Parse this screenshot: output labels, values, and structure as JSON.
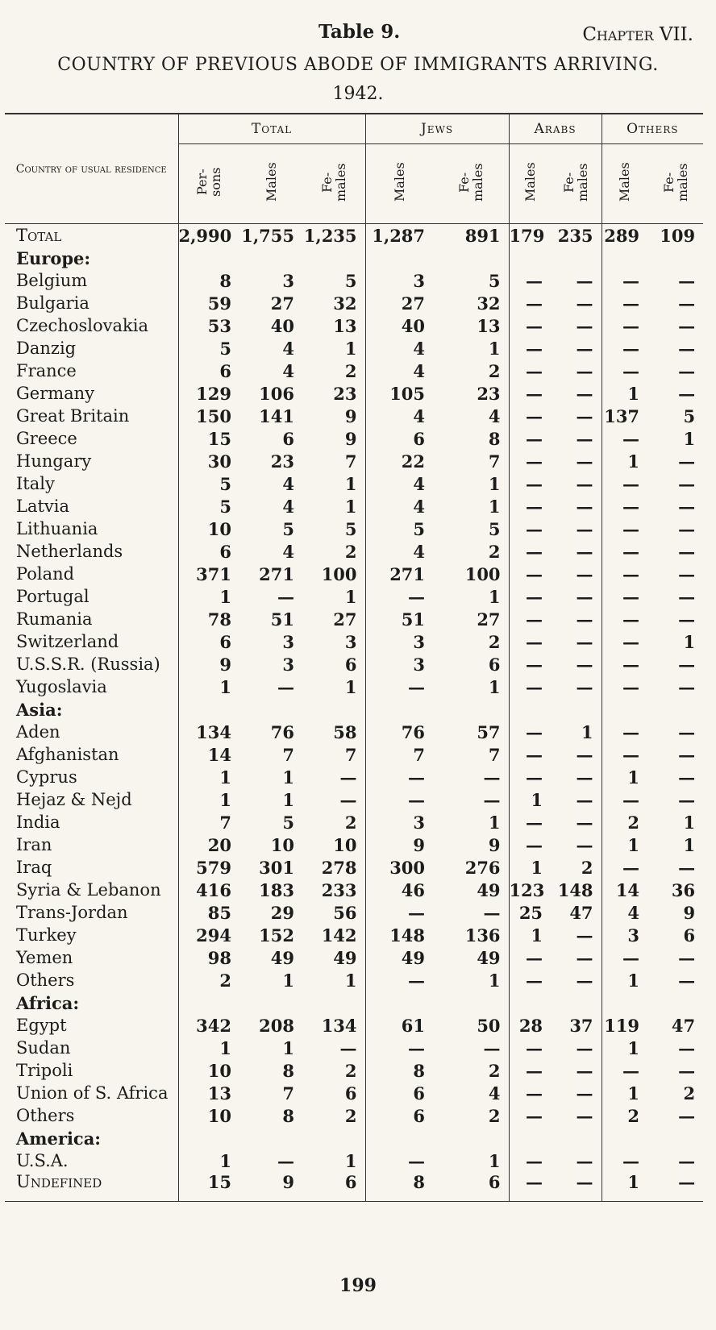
{
  "header": {
    "table_no": "Table 9.",
    "chapter": "Chapter VII.",
    "title": "COUNTRY OF PREVIOUS ABODE OF IMMIGRANTS ARRIVING.",
    "year": "1942."
  },
  "table": {
    "corner": "Country of usual residence",
    "groups": [
      "Total",
      "Jews",
      "Arabs",
      "Others"
    ],
    "columns": [
      "Per- sons",
      "Males",
      "Fe- males",
      "Males",
      "Fe- males",
      "Males",
      "Fe- males",
      "Males",
      "Fe- males"
    ],
    "total": {
      "label": "Total",
      "cells": [
        "2,990",
        "1,755",
        "1,235",
        "1,287",
        "891",
        "179",
        "235",
        "289",
        "109"
      ]
    },
    "sections": [
      {
        "heading": "Europe:",
        "rows": [
          {
            "label": "Belgium",
            "cells": [
              "8",
              "3",
              "5",
              "3",
              "5",
              "—",
              "—",
              "—",
              "—"
            ]
          },
          {
            "label": "Bulgaria",
            "cells": [
              "59",
              "27",
              "32",
              "27",
              "32",
              "—",
              "—",
              "—",
              "—"
            ]
          },
          {
            "label": "Czechoslovakia",
            "cells": [
              "53",
              "40",
              "13",
              "40",
              "13",
              "—",
              "—",
              "—",
              "—"
            ]
          },
          {
            "label": "Danzig",
            "cells": [
              "5",
              "4",
              "1",
              "4",
              "1",
              "—",
              "—",
              "—",
              "—"
            ]
          },
          {
            "label": "France",
            "cells": [
              "6",
              "4",
              "2",
              "4",
              "2",
              "—",
              "—",
              "—",
              "—"
            ]
          },
          {
            "label": "Germany",
            "cells": [
              "129",
              "106",
              "23",
              "105",
              "23",
              "—",
              "—",
              "1",
              "—"
            ]
          },
          {
            "label": "Great Britain",
            "cells": [
              "150",
              "141",
              "9",
              "4",
              "4",
              "—",
              "—",
              "137",
              "5"
            ]
          },
          {
            "label": "Greece",
            "cells": [
              "15",
              "6",
              "9",
              "6",
              "8",
              "—",
              "—",
              "—",
              "1"
            ]
          },
          {
            "label": "Hungary",
            "cells": [
              "30",
              "23",
              "7",
              "22",
              "7",
              "—",
              "—",
              "1",
              "—"
            ]
          },
          {
            "label": "Italy",
            "cells": [
              "5",
              "4",
              "1",
              "4",
              "1",
              "—",
              "—",
              "—",
              "—"
            ]
          },
          {
            "label": "Latvia",
            "cells": [
              "5",
              "4",
              "1",
              "4",
              "1",
              "—",
              "—",
              "—",
              "—"
            ]
          },
          {
            "label": "Lithuania",
            "cells": [
              "10",
              "5",
              "5",
              "5",
              "5",
              "—",
              "—",
              "—",
              "—"
            ]
          },
          {
            "label": "Netherlands",
            "cells": [
              "6",
              "4",
              "2",
              "4",
              "2",
              "—",
              "—",
              "—",
              "—"
            ]
          },
          {
            "label": "Poland",
            "cells": [
              "371",
              "271",
              "100",
              "271",
              "100",
              "—",
              "—",
              "—",
              "—"
            ]
          },
          {
            "label": "Portugal",
            "cells": [
              "1",
              "—",
              "1",
              "—",
              "1",
              "—",
              "—",
              "—",
              "—"
            ]
          },
          {
            "label": "Rumania",
            "cells": [
              "78",
              "51",
              "27",
              "51",
              "27",
              "—",
              "—",
              "—",
              "—"
            ]
          },
          {
            "label": "Switzerland",
            "cells": [
              "6",
              "3",
              "3",
              "3",
              "2",
              "—",
              "—",
              "—",
              "1"
            ]
          },
          {
            "label": "U.S.S.R. (Russia)",
            "cells": [
              "9",
              "3",
              "6",
              "3",
              "6",
              "—",
              "—",
              "—",
              "—"
            ]
          },
          {
            "label": "Yugoslavia",
            "cells": [
              "1",
              "—",
              "1",
              "—",
              "1",
              "—",
              "—",
              "—",
              "—"
            ]
          }
        ]
      },
      {
        "heading": "Asia:",
        "rows": [
          {
            "label": "Aden",
            "cells": [
              "134",
              "76",
              "58",
              "76",
              "57",
              "—",
              "1",
              "—",
              "—"
            ]
          },
          {
            "label": "Afghanistan",
            "cells": [
              "14",
              "7",
              "7",
              "7",
              "7",
              "—",
              "—",
              "—",
              "—"
            ]
          },
          {
            "label": "Cyprus",
            "cells": [
              "1",
              "1",
              "—",
              "—",
              "—",
              "—",
              "—",
              "1",
              "—"
            ]
          },
          {
            "label": "Hejaz & Nejd",
            "cells": [
              "1",
              "1",
              "—",
              "—",
              "—",
              "1",
              "—",
              "—",
              "—"
            ]
          },
          {
            "label": "India",
            "cells": [
              "7",
              "5",
              "2",
              "3",
              "1",
              "—",
              "—",
              "2",
              "1"
            ]
          },
          {
            "label": "Iran",
            "cells": [
              "20",
              "10",
              "10",
              "9",
              "9",
              "—",
              "—",
              "1",
              "1"
            ]
          },
          {
            "label": "Iraq",
            "cells": [
              "579",
              "301",
              "278",
              "300",
              "276",
              "1",
              "2",
              "—",
              "—"
            ]
          },
          {
            "label": "Syria & Lebanon",
            "cells": [
              "416",
              "183",
              "233",
              "46",
              "49",
              "123",
              "148",
              "14",
              "36"
            ]
          },
          {
            "label": "Trans-Jordan",
            "cells": [
              "85",
              "29",
              "56",
              "—",
              "—",
              "25",
              "47",
              "4",
              "9"
            ]
          },
          {
            "label": "Turkey",
            "cells": [
              "294",
              "152",
              "142",
              "148",
              "136",
              "1",
              "—",
              "3",
              "6"
            ]
          },
          {
            "label": "Yemen",
            "cells": [
              "98",
              "49",
              "49",
              "49",
              "49",
              "—",
              "—",
              "—",
              "—"
            ]
          },
          {
            "label": "Others",
            "cells": [
              "2",
              "1",
              "1",
              "—",
              "1",
              "—",
              "—",
              "1",
              "—"
            ]
          }
        ]
      },
      {
        "heading": "Africa:",
        "rows": [
          {
            "label": "Egypt",
            "cells": [
              "342",
              "208",
              "134",
              "61",
              "50",
              "28",
              "37",
              "119",
              "47"
            ]
          },
          {
            "label": "Sudan",
            "cells": [
              "1",
              "1",
              "—",
              "—",
              "—",
              "—",
              "—",
              "1",
              "—"
            ]
          },
          {
            "label": "Tripoli",
            "cells": [
              "10",
              "8",
              "2",
              "8",
              "2",
              "—",
              "—",
              "—",
              "—"
            ]
          },
          {
            "label": "Union of S. Africa",
            "cells": [
              "13",
              "7",
              "6",
              "6",
              "4",
              "—",
              "—",
              "1",
              "2"
            ]
          },
          {
            "label": "Others",
            "cells": [
              "10",
              "8",
              "2",
              "6",
              "2",
              "—",
              "—",
              "2",
              "—"
            ]
          }
        ]
      },
      {
        "heading": "America:",
        "rows": [
          {
            "label": "U.S.A.",
            "cells": [
              "1",
              "—",
              "1",
              "—",
              "1",
              "—",
              "—",
              "—",
              "—"
            ]
          }
        ]
      }
    ],
    "undefined": {
      "label": "Undefined",
      "cells": [
        "15",
        "9",
        "6",
        "8",
        "6",
        "—",
        "—",
        "1",
        "—"
      ]
    }
  },
  "footer": {
    "page": "199"
  }
}
